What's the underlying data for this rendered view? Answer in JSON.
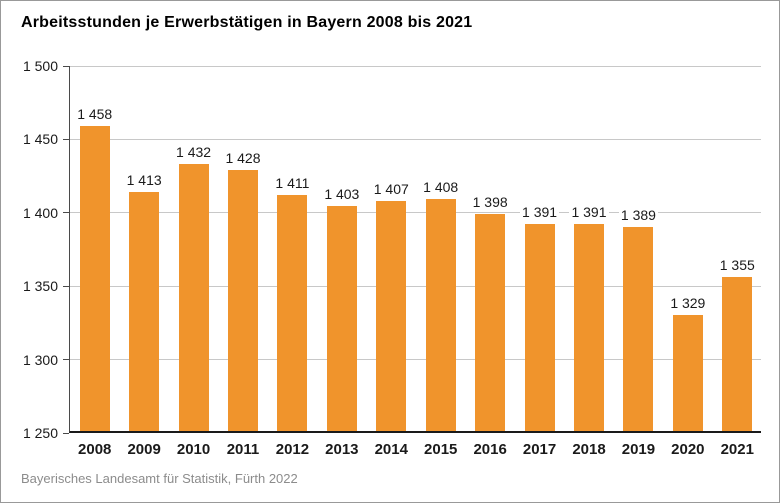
{
  "header": {
    "title": "Arbeitsstunden je Erwerbstätigen in Bayern 2008 bis 2021"
  },
  "footer": {
    "source": "Bayerisches Landesamt für Statistik, Fürth 2022"
  },
  "colors": {
    "background": "#FFFFFF",
    "frame_border": "#999999",
    "bar": "#F0942C",
    "grid": "#C8C8C8",
    "axis": "#4A4A4A",
    "baseline": "#1A1A1A",
    "text": "#1A1A1A",
    "source_text": "#8C8C8C"
  },
  "chart_data": {
    "type": "bar",
    "title": "Arbeitsstunden je Erwerbstätigen in Bayern 2008 bis 2021",
    "categories": [
      "2008",
      "2009",
      "2010",
      "2011",
      "2012",
      "2013",
      "2014",
      "2015",
      "2016",
      "2017",
      "2018",
      "2019",
      "2020",
      "2021"
    ],
    "values": [
      1458,
      1413,
      1432,
      1428,
      1411,
      1403,
      1407,
      1408,
      1398,
      1391,
      1391,
      1389,
      1329,
      1355
    ],
    "value_labels_shown": [
      "1 458",
      "1 413",
      "1 432",
      "1 428",
      "1 411",
      "1 403",
      "1 407",
      "1 408",
      "1 398",
      "1 391",
      "1 391",
      "1 389",
      "1 329",
      "1 355"
    ],
    "xlabel": "",
    "ylabel": "",
    "ylim": [
      1250,
      1500
    ],
    "yticks": [
      1250,
      1300,
      1350,
      1400,
      1450,
      1500
    ],
    "ytick_labels": [
      "1 250",
      "1 300",
      "1 350",
      "1 400",
      "1 450",
      "1 500"
    ],
    "grid": "horizontal",
    "legend": "none",
    "bar_color": "#F0942C",
    "source": "Bayerisches Landesamt für Statistik, Fürth 2022"
  }
}
